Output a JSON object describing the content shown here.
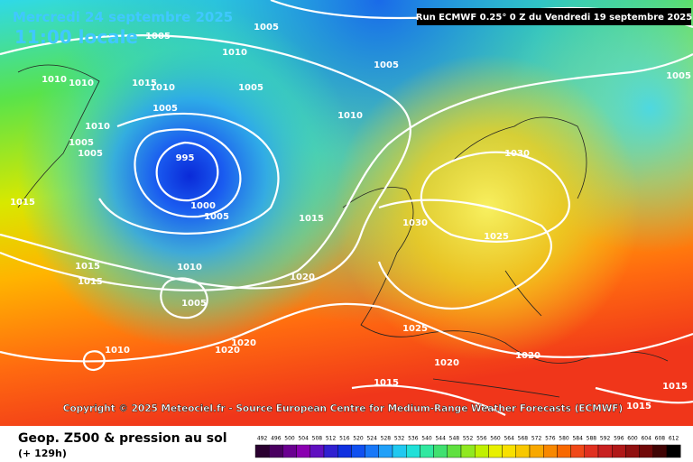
{
  "header": {
    "date": "Mercredi 24 septembre 2025",
    "time": "11:00 locale",
    "run": "Run ECMWF 0.25° 0 Z du Vendredi 19 septembre 2025"
  },
  "isobar_labels": [
    "1005",
    "1005",
    "1010",
    "1015",
    "1010",
    "1005",
    "1010",
    "1010",
    "1010",
    "1005",
    "1005",
    "995",
    "1000",
    "1005",
    "1010",
    "1005",
    "1005",
    "1015",
    "1015",
    "1015",
    "1015",
    "1010",
    "1005",
    "1020",
    "1020",
    "1020",
    "1010",
    "1030",
    "1030",
    "1025",
    "1025",
    "1020",
    "1020",
    "1015",
    "1015",
    "1015",
    "1005"
  ],
  "copyright": "Copyright © 2025 Meteociel.fr - Source European Centre for Medium-Range Weather Forecasts (ECMWF)",
  "legend": {
    "title": "Geop. Z500 & pression au sol",
    "lead": "(+ 129h)",
    "scale": [
      492,
      496,
      500,
      504,
      508,
      512,
      516,
      520,
      524,
      528,
      532,
      536,
      540,
      544,
      548,
      552,
      556,
      560,
      564,
      568,
      572,
      576,
      580,
      584,
      588,
      592,
      596,
      600,
      604,
      608,
      612
    ]
  }
}
